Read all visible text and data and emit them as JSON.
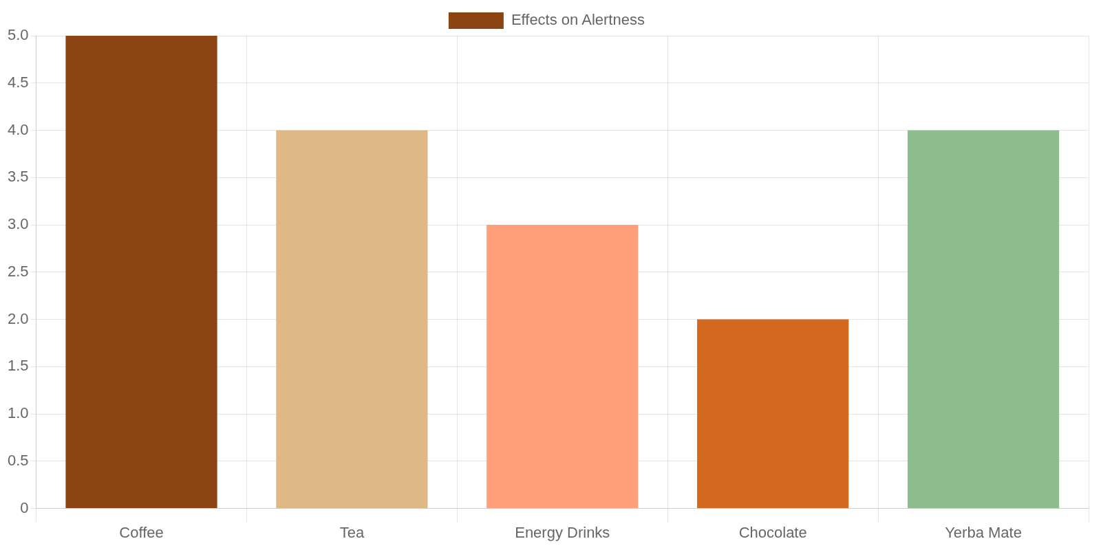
{
  "chart_data": {
    "type": "bar",
    "categories": [
      "Coffee",
      "Tea",
      "Energy Drinks",
      "Chocolate",
      "Yerba Mate"
    ],
    "series": [
      {
        "name": "Effects on Alertness",
        "colors": [
          "#8b4513",
          "#deb887",
          "#ffa07a",
          "#d2691e",
          "#8fbc8f"
        ],
        "values": [
          5,
          4,
          3,
          2,
          4
        ]
      }
    ],
    "ylim": [
      0,
      5
    ],
    "yticks": [
      {
        "value": 0,
        "label": "0"
      },
      0.5,
      {
        "value": 1,
        "label": "1.0"
      },
      1.5,
      {
        "value": 2,
        "label": "2.0"
      },
      2.5,
      {
        "value": 3,
        "label": "3.0"
      },
      3.5,
      {
        "value": 4,
        "label": "4.0"
      },
      4.5,
      {
        "value": 5,
        "label": "5.0"
      }
    ],
    "grid": true,
    "legend": "top"
  }
}
